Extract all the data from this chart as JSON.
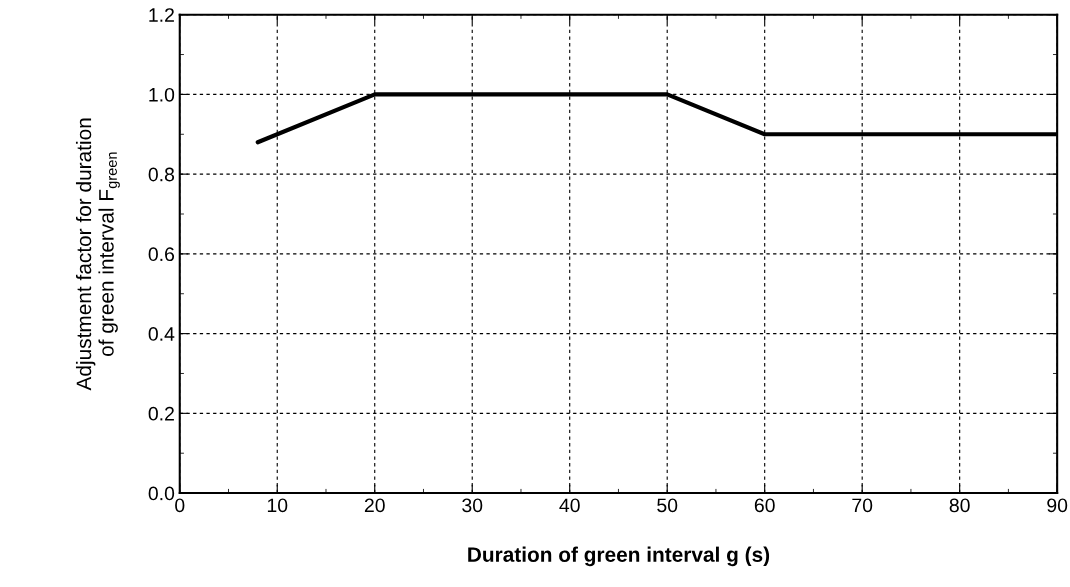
{
  "chart_data": {
    "type": "line",
    "xlabel": "Duration of green interval g (s)",
    "ylabel": "Adjustment factor for duration\nof green interval F$_{green}$",
    "x": [
      8,
      20,
      50,
      60,
      90
    ],
    "series": [
      {
        "color": "#000000",
        "values": [
          0.88,
          1.0,
          1.0,
          0.9,
          0.9
        ]
      }
    ],
    "xlim": [
      0,
      90
    ],
    "xticks": [
      0,
      10,
      20,
      30,
      40,
      50,
      60,
      70,
      80,
      90
    ],
    "ylim": [
      0.0,
      1.2
    ],
    "yticks": [
      {
        "value": 0,
        "label": "0.0"
      },
      0.2,
      0.4,
      0.6,
      0.8,
      {
        "value": 1,
        "label": "1.0"
      },
      1.2
    ],
    "grid": true,
    "line_style": "solid",
    "marker": "none"
  }
}
